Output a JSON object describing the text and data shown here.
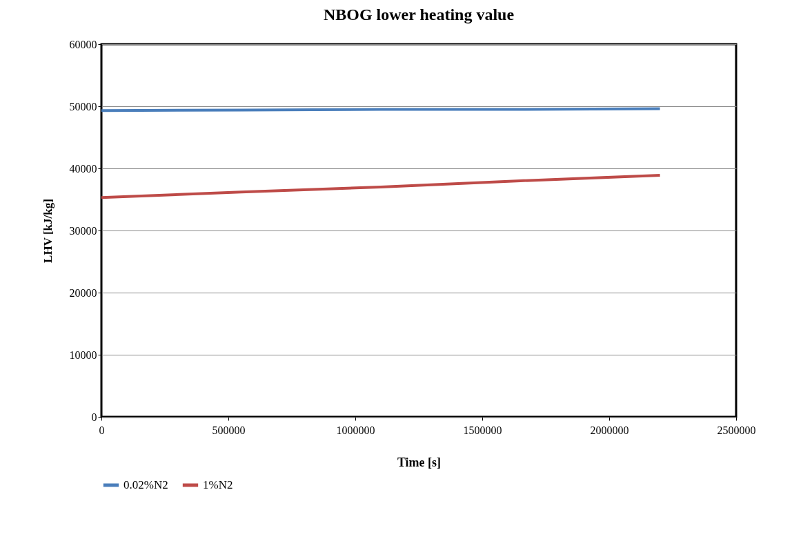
{
  "chart_data": {
    "type": "line",
    "title": "NBOG lower heating value",
    "xlabel": "Time [s]",
    "ylabel": "LHV [kJ/kg]",
    "x": [
      0,
      550000,
      1100000,
      1650000,
      2200000
    ],
    "series": [
      {
        "name": "0.02%N2",
        "color": "#4a7ebb",
        "values": [
          49300,
          49400,
          49500,
          49500,
          49600
        ]
      },
      {
        "name": "1%N2",
        "color": "#be4b48",
        "values": [
          35300,
          36200,
          37000,
          38000,
          38900
        ]
      }
    ],
    "xlim": [
      0,
      2500000
    ],
    "xticks": [
      0,
      500000,
      1000000,
      1500000,
      2000000,
      2500000
    ],
    "ylim": [
      0,
      60000
    ],
    "yticks": [
      0,
      10000,
      20000,
      30000,
      40000,
      50000,
      60000
    ],
    "grid": "y",
    "legend": "bottom",
    "line_style": "solid"
  }
}
